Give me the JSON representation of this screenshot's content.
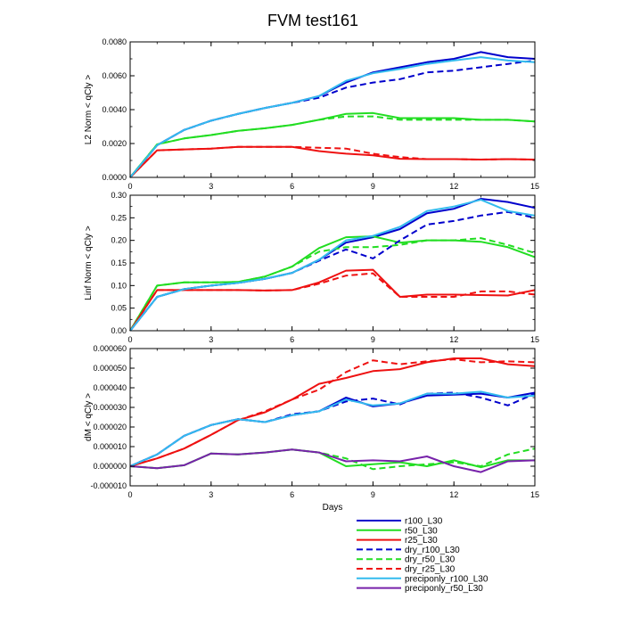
{
  "title": "FVM test161",
  "chart_data": [
    {
      "type": "line",
      "ylabel": "L2 Norm < qCly >",
      "xlabel": "",
      "xlim": [
        0,
        15
      ],
      "ylim": [
        0,
        0.008
      ],
      "xticks": [
        0,
        3,
        6,
        9,
        12,
        15
      ],
      "yticks": [
        0.0,
        0.002,
        0.004,
        0.006,
        0.008
      ],
      "ytick_labels": [
        "0.0000",
        "0.0020",
        "0.0040",
        "0.0060",
        "0.0080"
      ],
      "x": [
        0,
        1,
        2,
        3,
        4,
        5,
        6,
        7,
        8,
        9,
        10,
        11,
        12,
        13,
        14,
        15
      ],
      "series": [
        {
          "name": "r100_L30",
          "values": [
            0,
            0.0019,
            0.0028,
            0.00335,
            0.00375,
            0.0041,
            0.0044,
            0.0048,
            0.0056,
            0.0062,
            0.0065,
            0.0068,
            0.007,
            0.0074,
            0.0071,
            0.007
          ]
        },
        {
          "name": "r50_L30",
          "values": [
            0,
            0.00195,
            0.0023,
            0.0025,
            0.00275,
            0.0029,
            0.0031,
            0.0034,
            0.00375,
            0.0038,
            0.0035,
            0.0035,
            0.0035,
            0.0034,
            0.0034,
            0.0033
          ]
        },
        {
          "name": "r25_L30",
          "values": [
            0,
            0.0016,
            0.00165,
            0.0017,
            0.0018,
            0.0018,
            0.0018,
            0.00155,
            0.0014,
            0.0013,
            0.0011,
            0.00108,
            0.00108,
            0.00105,
            0.00108,
            0.00105
          ]
        },
        {
          "name": "dry_r100_L30",
          "values": [
            0,
            0.0019,
            0.0028,
            0.00335,
            0.00375,
            0.0041,
            0.0044,
            0.0047,
            0.0053,
            0.0056,
            0.0058,
            0.0062,
            0.0063,
            0.0065,
            0.0067,
            0.0069
          ]
        },
        {
          "name": "dry_r50_L30",
          "values": [
            0,
            0.00195,
            0.0023,
            0.0025,
            0.00275,
            0.0029,
            0.0031,
            0.0034,
            0.0036,
            0.0036,
            0.0034,
            0.0034,
            0.0034,
            0.0034,
            0.0034,
            0.0033
          ]
        },
        {
          "name": "dry_r25_L30",
          "values": [
            0,
            0.0016,
            0.00165,
            0.0017,
            0.0018,
            0.0018,
            0.0018,
            0.00175,
            0.0017,
            0.0014,
            0.0012,
            0.00108,
            0.00108,
            0.00105,
            0.00108,
            0.00105
          ]
        },
        {
          "name": "preciponly_r100_L30",
          "values": [
            0,
            0.0019,
            0.0028,
            0.00335,
            0.00375,
            0.0041,
            0.0044,
            0.0048,
            0.0057,
            0.00615,
            0.0064,
            0.0067,
            0.0069,
            0.0071,
            0.0069,
            0.0068
          ]
        }
      ]
    },
    {
      "type": "line",
      "ylabel": "Linf Norm < qCly >",
      "xlabel": "",
      "xlim": [
        0,
        15
      ],
      "ylim": [
        0,
        0.3
      ],
      "xticks": [
        0,
        3,
        6,
        9,
        12,
        15
      ],
      "yticks": [
        0.0,
        0.05,
        0.1,
        0.15,
        0.2,
        0.25,
        0.3
      ],
      "ytick_labels": [
        "0.00",
        "0.05",
        "0.10",
        "0.15",
        "0.20",
        "0.25",
        "0.30"
      ],
      "x": [
        0,
        1,
        2,
        3,
        4,
        5,
        6,
        7,
        8,
        9,
        10,
        11,
        12,
        13,
        14,
        15
      ],
      "series": [
        {
          "name": "r100_L30",
          "values": [
            0,
            0.075,
            0.092,
            0.1,
            0.106,
            0.115,
            0.128,
            0.157,
            0.195,
            0.207,
            0.225,
            0.26,
            0.27,
            0.292,
            0.285,
            0.272
          ]
        },
        {
          "name": "r50_L30",
          "values": [
            0,
            0.1,
            0.107,
            0.107,
            0.108,
            0.12,
            0.142,
            0.183,
            0.207,
            0.209,
            0.195,
            0.2,
            0.2,
            0.197,
            0.185,
            0.163
          ]
        },
        {
          "name": "r25_L30",
          "values": [
            0,
            0.09,
            0.09,
            0.09,
            0.09,
            0.089,
            0.09,
            0.107,
            0.133,
            0.135,
            0.075,
            0.08,
            0.08,
            0.079,
            0.078,
            0.09
          ]
        },
        {
          "name": "dry_r100_L30",
          "values": [
            0,
            0.075,
            0.092,
            0.1,
            0.106,
            0.115,
            0.128,
            0.155,
            0.18,
            0.16,
            0.2,
            0.235,
            0.243,
            0.255,
            0.263,
            0.25
          ]
        },
        {
          "name": "dry_r50_L30",
          "values": [
            0,
            0.1,
            0.107,
            0.107,
            0.108,
            0.12,
            0.142,
            0.175,
            0.185,
            0.185,
            0.19,
            0.2,
            0.2,
            0.205,
            0.19,
            0.172
          ]
        },
        {
          "name": "dry_r25_L30",
          "values": [
            0,
            0.09,
            0.09,
            0.09,
            0.09,
            0.089,
            0.09,
            0.104,
            0.122,
            0.127,
            0.075,
            0.075,
            0.075,
            0.087,
            0.087,
            0.08
          ]
        },
        {
          "name": "preciponly_r100_L30",
          "values": [
            0,
            0.075,
            0.092,
            0.1,
            0.106,
            0.115,
            0.128,
            0.157,
            0.2,
            0.21,
            0.23,
            0.265,
            0.275,
            0.29,
            0.265,
            0.255
          ]
        }
      ]
    },
    {
      "type": "line",
      "ylabel": "dM < qCly >",
      "xlabel": "Days",
      "xlim": [
        0,
        15
      ],
      "ylim": [
        -1e-05,
        6e-05
      ],
      "xticks": [
        0,
        3,
        6,
        9,
        12,
        15
      ],
      "yticks": [
        -1e-05,
        0.0,
        1e-05,
        2e-05,
        3e-05,
        4e-05,
        5e-05,
        6e-05
      ],
      "ytick_labels": [
        "-0.000010",
        "0.000000",
        "0.000010",
        "0.000020",
        "0.000030",
        "0.000040",
        "0.000050",
        "0.000060"
      ],
      "x": [
        0,
        1,
        2,
        3,
        4,
        5,
        6,
        7,
        8,
        9,
        10,
        11,
        12,
        13,
        14,
        15
      ],
      "series": [
        {
          "name": "r100_L30",
          "values": [
            0,
            6e-06,
            1.55e-05,
            2.1e-05,
            2.4e-05,
            2.25e-05,
            2.6e-05,
            2.8e-05,
            3.5e-05,
            3.05e-05,
            3.2e-05,
            3.6e-05,
            3.65e-05,
            3.7e-05,
            3.5e-05,
            3.75e-05
          ]
        },
        {
          "name": "r50_L30",
          "values": [
            0,
            -1e-06,
            5e-07,
            6.5e-06,
            6e-06,
            7e-06,
            8.5e-06,
            7e-06,
            0,
            1e-06,
            2e-06,
            0,
            3e-06,
            -5e-07,
            3e-06,
            3e-06
          ]
        },
        {
          "name": "r25_L30",
          "values": [
            0,
            4e-06,
            9e-06,
            1.6e-05,
            2.35e-05,
            2.75e-05,
            3.4e-05,
            4.2e-05,
            4.5e-05,
            4.85e-05,
            4.95e-05,
            5.3e-05,
            5.5e-05,
            5.5e-05,
            5.2e-05,
            5.1e-05
          ]
        },
        {
          "name": "dry_r100_L30",
          "values": [
            0,
            6e-06,
            1.55e-05,
            2.1e-05,
            2.4e-05,
            2.25e-05,
            2.65e-05,
            2.8e-05,
            3.3e-05,
            3.45e-05,
            3.15e-05,
            3.7e-05,
            3.75e-05,
            3.5e-05,
            3.1e-05,
            3.7e-05
          ]
        },
        {
          "name": "dry_r50_L30",
          "values": [
            0,
            -1e-06,
            5e-07,
            6.5e-06,
            6e-06,
            7e-06,
            8.5e-06,
            7e-06,
            4e-06,
            -1.5e-06,
            0,
            1e-06,
            2e-06,
            0,
            6e-06,
            9e-06
          ]
        },
        {
          "name": "dry_r25_L30",
          "values": [
            0,
            4e-06,
            9e-06,
            1.6e-05,
            2.35e-05,
            2.8e-05,
            3.4e-05,
            3.9e-05,
            4.8e-05,
            5.4e-05,
            5.2e-05,
            5.35e-05,
            5.45e-05,
            5.3e-05,
            5.35e-05,
            5.3e-05
          ]
        },
        {
          "name": "preciponly_r100_L30",
          "values": [
            0,
            6e-06,
            1.55e-05,
            2.1e-05,
            2.4e-05,
            2.25e-05,
            2.6e-05,
            2.8e-05,
            3.4e-05,
            3.1e-05,
            3.2e-05,
            3.7e-05,
            3.7e-05,
            3.8e-05,
            3.5e-05,
            3.6e-05
          ]
        },
        {
          "name": "preciponly_r50_L30",
          "values": [
            0,
            -1e-06,
            5e-07,
            6.5e-06,
            6e-06,
            7e-06,
            8.5e-06,
            7e-06,
            2.5e-06,
            3e-06,
            2.5e-06,
            5e-06,
            0,
            -3e-06,
            2.5e-06,
            3e-06
          ]
        }
      ]
    }
  ],
  "legend": [
    {
      "name": "r100_L30",
      "color": "#0000cc",
      "dash": "solid"
    },
    {
      "name": "r50_L30",
      "color": "#22dd22",
      "dash": "solid"
    },
    {
      "name": "r25_L30",
      "color": "#ee1111",
      "dash": "solid"
    },
    {
      "name": "dry_r100_L30",
      "color": "#0000cc",
      "dash": "dashed"
    },
    {
      "name": "dry_r50_L30",
      "color": "#22dd22",
      "dash": "dashed"
    },
    {
      "name": "dry_r25_L30",
      "color": "#ee1111",
      "dash": "dashed"
    },
    {
      "name": "preciponly_r100_L30",
      "color": "#33bbee",
      "dash": "solid"
    },
    {
      "name": "preciponly_r50_L30",
      "color": "#7722aa",
      "dash": "solid"
    }
  ]
}
